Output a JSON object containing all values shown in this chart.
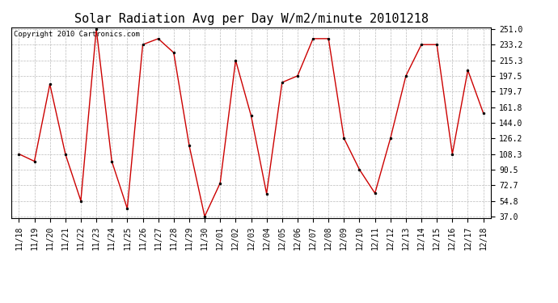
{
  "title": "Solar Radiation Avg per Day W/m2/minute 20101218",
  "copyright": "Copyright 2010 Cartronics.com",
  "dates": [
    "11/18",
    "11/19",
    "11/20",
    "11/21",
    "11/22",
    "11/23",
    "11/24",
    "11/25",
    "11/26",
    "11/27",
    "11/28",
    "11/29",
    "11/30",
    "12/01",
    "12/02",
    "12/03",
    "12/04",
    "12/05",
    "12/06",
    "12/07",
    "12/08",
    "12/09",
    "12/10",
    "12/11",
    "12/12",
    "12/13",
    "12/14",
    "12/15",
    "12/16",
    "12/17",
    "12/18"
  ],
  "values": [
    108.3,
    100.0,
    188.0,
    108.3,
    54.8,
    251.0,
    100.0,
    46.0,
    233.2,
    240.0,
    224.0,
    118.0,
    37.0,
    75.0,
    215.3,
    152.0,
    63.0,
    190.0,
    197.5,
    240.0,
    240.0,
    126.2,
    90.5,
    63.5,
    126.2,
    197.5,
    233.2,
    233.2,
    108.3,
    204.0,
    155.0
  ],
  "line_color": "#cc0000",
  "marker": "o",
  "marker_size": 2,
  "bg_color": "#ffffff",
  "grid_color": "#bbbbbb",
  "yticks": [
    37.0,
    54.8,
    72.7,
    90.5,
    108.3,
    126.2,
    144.0,
    161.8,
    179.7,
    197.5,
    215.3,
    233.2,
    251.0
  ],
  "ymin": 37.0,
  "ymax": 251.0,
  "title_fontsize": 11,
  "tick_fontsize": 7,
  "copyright_fontsize": 6.5
}
